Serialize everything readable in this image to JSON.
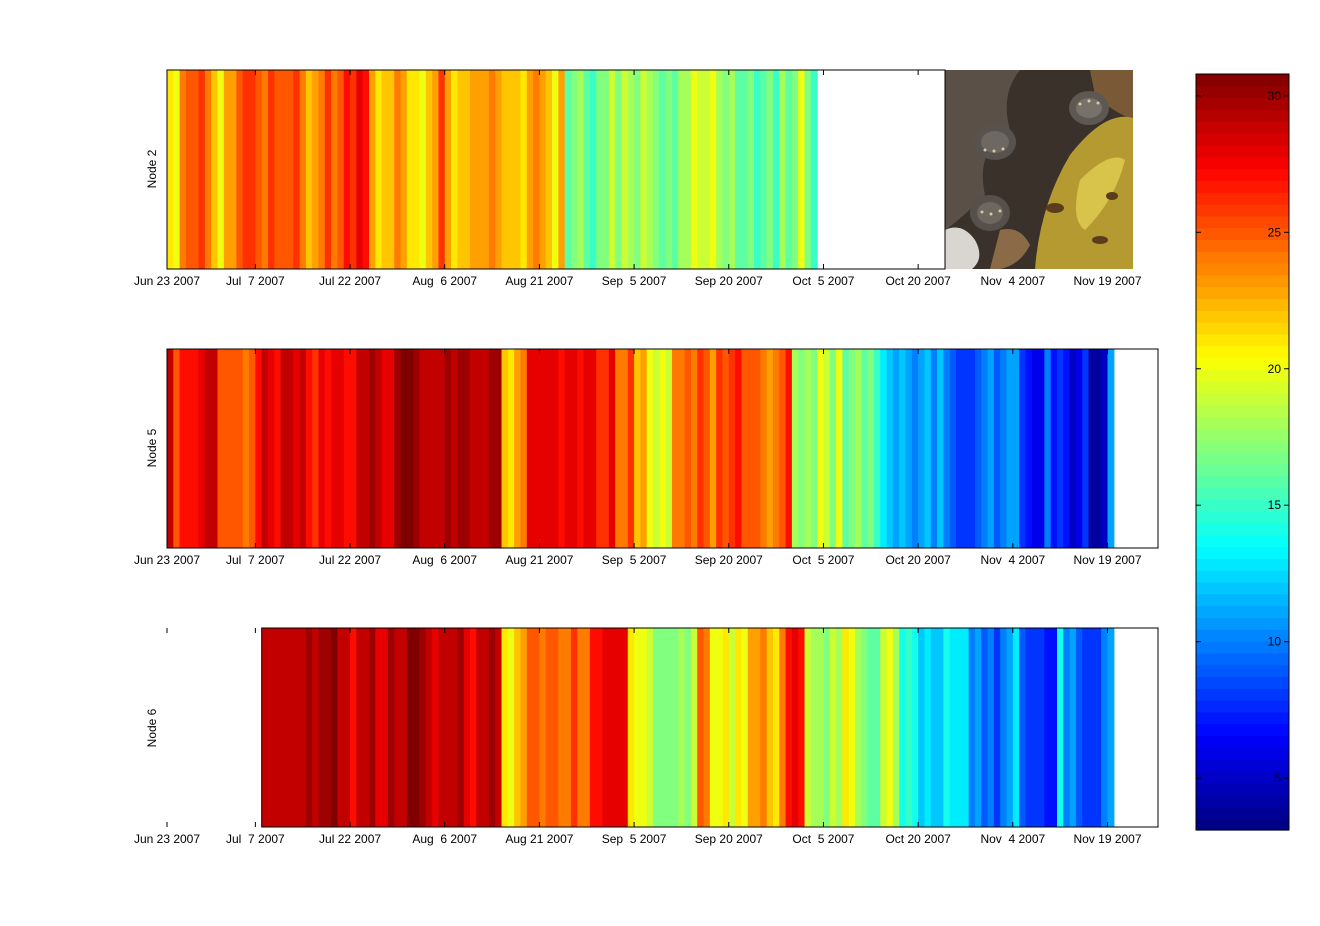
{
  "chart_data": {
    "type": "heatmap",
    "x_tick_labels": [
      "Jun 23 2007",
      "Jul  7 2007",
      "Jul 22 2007",
      "Aug  6 2007",
      "Aug 21 2007",
      "Sep  5 2007",
      "Sep 20 2007",
      "Oct  5 2007",
      "Oct 20 2007",
      "Nov  4 2007",
      "Nov 19 2007"
    ],
    "x_tick_values": [
      "2007-06-23",
      "2007-07-07",
      "2007-07-22",
      "2007-08-06",
      "2007-08-21",
      "2007-09-05",
      "2007-09-20",
      "2007-10-05",
      "2007-10-20",
      "2007-11-04",
      "2007-11-19"
    ],
    "x_range": [
      "2007-06-23",
      "2007-11-27"
    ],
    "colorbar": {
      "colormap": "jet",
      "range": [
        3.1,
        30.8
      ],
      "ticks": [
        5,
        10,
        15,
        20,
        25,
        30
      ],
      "placement": "right"
    },
    "insets": [
      {
        "type": "photo",
        "subject": "box turtle hatchlings on soil with leaves",
        "panel": "Node 2"
      }
    ],
    "panels": [
      {
        "name": "Node 2",
        "start": "2007-06-23",
        "values": [
          21,
          20,
          24,
          25,
          25,
          26,
          24,
          22,
          20,
          23,
          23,
          25,
          26,
          26,
          25,
          24,
          26,
          25,
          25,
          25,
          26,
          24,
          22,
          23,
          24,
          26,
          24,
          25,
          27,
          26,
          28,
          27,
          23,
          21,
          22,
          22,
          24,
          23,
          21,
          21,
          20,
          22,
          23,
          26,
          23,
          21,
          22,
          22,
          23,
          23,
          23,
          24,
          23,
          22,
          22,
          22,
          21,
          23,
          24,
          23,
          22,
          20,
          23,
          16,
          17,
          18,
          16,
          15,
          17,
          17,
          19,
          17,
          19,
          18,
          17,
          19,
          18,
          17,
          16,
          17,
          16,
          18,
          18,
          20,
          19,
          19,
          20,
          18,
          17,
          18,
          16,
          16,
          17,
          15,
          16,
          17,
          15,
          18,
          16,
          17,
          20,
          17,
          15
        ]
      },
      {
        "name": "Node 5",
        "start": "2007-06-23",
        "values": [
          29,
          25,
          27,
          27,
          27,
          28,
          29,
          29,
          25,
          25,
          25,
          25,
          24,
          25,
          27,
          29,
          28,
          27,
          29,
          29,
          28,
          29,
          27,
          26,
          28,
          27,
          28,
          28,
          27,
          27,
          29,
          29,
          30,
          29,
          28,
          28,
          30,
          31,
          31,
          30,
          29,
          29,
          29,
          29,
          30,
          29,
          30,
          30,
          29,
          29,
          29,
          30,
          30,
          22,
          21,
          23,
          24,
          28,
          28,
          28,
          28,
          28,
          27,
          28,
          28,
          27,
          28,
          28,
          26,
          26,
          28,
          24,
          24,
          26,
          22,
          23,
          20,
          19,
          20,
          19,
          24,
          24,
          25,
          24,
          26,
          25,
          23,
          26,
          25,
          26,
          27,
          25,
          25,
          25,
          24,
          23,
          24,
          25,
          27,
          18,
          17,
          18,
          17,
          20,
          19,
          17,
          20,
          16,
          17,
          18,
          16,
          17,
          15,
          13,
          12,
          11,
          12,
          11,
          10,
          11,
          12,
          10,
          12,
          10,
          9,
          8,
          8,
          8,
          9,
          10,
          11,
          9,
          10,
          11,
          11,
          8,
          7,
          6,
          6,
          10,
          7,
          8,
          7,
          5,
          6,
          8,
          4,
          4,
          5,
          11
        ]
      },
      {
        "name": "Node 6",
        "start": "2007-07-08",
        "values": [
          29,
          29,
          29,
          29,
          29,
          29,
          29,
          30,
          29,
          30,
          30,
          31,
          29,
          29,
          27,
          29,
          29,
          30,
          28,
          28,
          30,
          29,
          29,
          31,
          31,
          30,
          29,
          28,
          29,
          29,
          29,
          30,
          28,
          27,
          29,
          29,
          30,
          29,
          21,
          20,
          22,
          23,
          25,
          25,
          24,
          25,
          25,
          24,
          24,
          26,
          24,
          24,
          27,
          27,
          28,
          28,
          28,
          28,
          21,
          20,
          20,
          19,
          17,
          17,
          17,
          17,
          18,
          17,
          19,
          25,
          24,
          20,
          20,
          21,
          19,
          21,
          20,
          23,
          23,
          24,
          22,
          21,
          24,
          27,
          28,
          27,
          19,
          18,
          18,
          17,
          19,
          18,
          21,
          20,
          18,
          17,
          16,
          16,
          19,
          20,
          18,
          14,
          15,
          14,
          12,
          13,
          12,
          12,
          14,
          13,
          13,
          13,
          10,
          11,
          9,
          10,
          8,
          10,
          11,
          13,
          9,
          8,
          8,
          8,
          7,
          7,
          14,
          10,
          11,
          9,
          8,
          8,
          8,
          10,
          11
        ]
      }
    ]
  }
}
